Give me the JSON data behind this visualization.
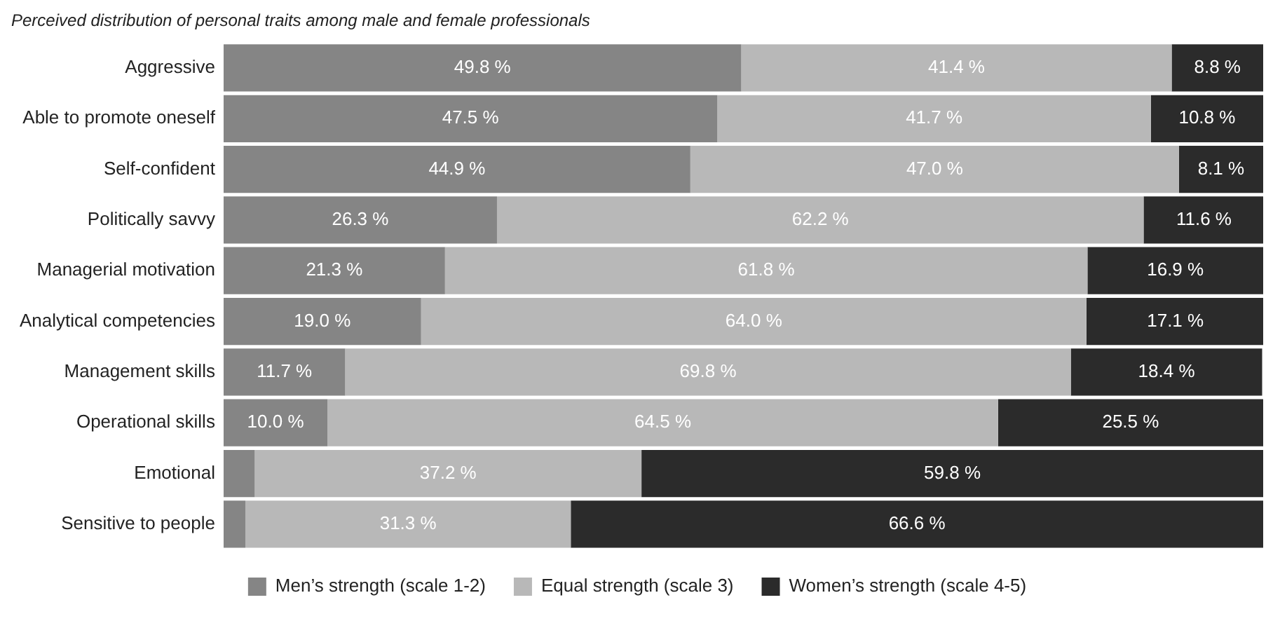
{
  "chart_data": {
    "type": "bar",
    "orientation": "horizontal",
    "stacked": true,
    "title": "Perceived distribution of personal traits among male and female professionals",
    "categories": [
      "Aggressive",
      "Able to promote oneself",
      "Self-confident",
      "Politically savvy",
      "Managerial motivation",
      "Analytical competencies",
      "Management skills",
      "Operational skills",
      "Emotional",
      "Sensitive to people"
    ],
    "series": [
      {
        "name": "Men’s strength (scale 1-2)",
        "color": "#858585",
        "values": [
          49.8,
          47.5,
          44.9,
          26.3,
          21.3,
          19.0,
          11.7,
          10.0,
          3.0,
          2.1
        ],
        "value_labels": [
          "49.8 %",
          "47.5 %",
          "44.9 %",
          "26.3 %",
          "21.3 %",
          "19.0 %",
          "11.7 %",
          "10.0 %",
          null,
          null
        ]
      },
      {
        "name": "Equal strength (scale 3)",
        "color": "#b8b8b8",
        "values": [
          41.4,
          41.7,
          47.0,
          62.2,
          61.8,
          64.0,
          69.8,
          64.5,
          37.2,
          31.3
        ],
        "value_labels": [
          "41.4 %",
          "41.7 %",
          "47.0 %",
          "62.2 %",
          "61.8 %",
          "64.0 %",
          "69.8 %",
          "64.5 %",
          "37.2 %",
          "31.3 %"
        ]
      },
      {
        "name": "Women’s strength (scale 4-5)",
        "color": "#2b2b2b",
        "values": [
          8.8,
          10.8,
          8.1,
          11.6,
          16.9,
          17.1,
          18.4,
          25.5,
          59.8,
          66.6
        ],
        "value_labels": [
          "8.8 %",
          "10.8 %",
          "8.1 %",
          "11.6 %",
          "16.9 %",
          "17.1 %",
          "18.4 %",
          "25.5 %",
          "59.8 %",
          "66.6 %"
        ]
      }
    ],
    "xlim": [
      0,
      100
    ],
    "tick_labels": "y",
    "legend": "bottom"
  }
}
